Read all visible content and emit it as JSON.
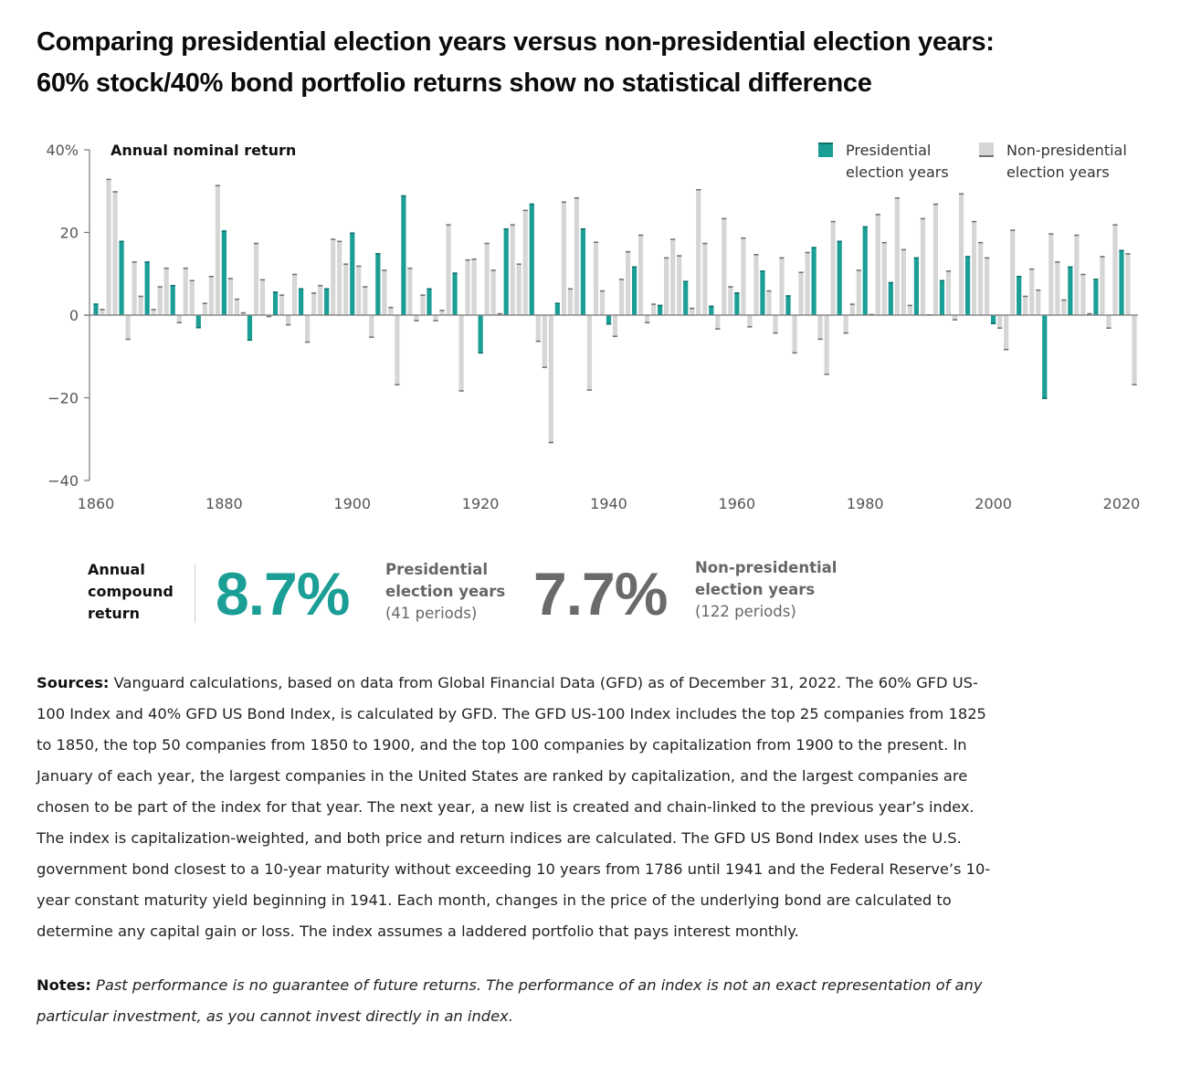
{
  "title": {
    "line1": "Comparing presidential election years versus non-presidential election years:",
    "line2": "60% stock/40% bond portfolio returns show no statistical difference"
  },
  "colors": {
    "presidential": "#1a9e96",
    "presidential_cap": "#0e6f69",
    "non_presidential": "#d6d6d6",
    "non_presidential_cap": "#707070",
    "axis": "#777777",
    "big_nonpres": "#6a6a6a"
  },
  "legend": {
    "presidential": {
      "line1": "Presidential",
      "line2": "election years"
    },
    "non_presidential": {
      "line1": "Non-presidential",
      "line2": "election years"
    }
  },
  "chart_data": {
    "type": "bar",
    "title": "Comparing presidential election years versus non-presidential election years: 60% stock/40% bond portfolio returns show no statistical difference",
    "ylabel": "Annual nominal return",
    "xlabel": "",
    "ylim": [
      -40,
      40
    ],
    "yticks": [
      40,
      20,
      0,
      -20,
      -40
    ],
    "ytick_labels": [
      "40%",
      "20",
      "0",
      "−20",
      "−40"
    ],
    "xlim": [
      1860,
      2022
    ],
    "xticks": [
      1860,
      1880,
      1900,
      1920,
      1940,
      1960,
      1980,
      2000,
      2020
    ],
    "grid": false,
    "legend_position": "top-right",
    "series": [
      {
        "name": "Presidential election years",
        "rule": "year % 4 == 0"
      },
      {
        "name": "Non-presidential election years",
        "rule": "year % 4 != 0"
      }
    ],
    "start_year": 1860,
    "values": [
      2.8,
      1.5,
      33,
      30,
      18,
      -6,
      13,
      4.7,
      13,
      1.5,
      7,
      11.5,
      7.3,
      -2,
      11.5,
      8.5,
      -3.2,
      3,
      9.5,
      31.5,
      20.5,
      9,
      4,
      0.7,
      -6.2,
      17.5,
      8.7,
      -0.5,
      5.7,
      5,
      -2.5,
      10,
      6.5,
      -6.7,
      5.5,
      7.3,
      6.5,
      18.5,
      18,
      12.5,
      20,
      12,
      7,
      -5.5,
      15,
      11,
      2,
      -17,
      29,
      11.5,
      -1.5,
      5,
      6.5,
      -1.5,
      1.3,
      22,
      10.3,
      -18.5,
      13.5,
      13.7,
      -9.3,
      17.5,
      11,
      0.5,
      21,
      22,
      12.5,
      25.5,
      27,
      -6.5,
      -12.8,
      -31,
      3,
      27.5,
      6.5,
      28.5,
      21,
      -18.3,
      17.8,
      6,
      -2.3,
      -5.3,
      8.8,
      15.5,
      11.8,
      19.5,
      -2,
      2.8,
      2.5,
      14,
      18.5,
      14.5,
      8.3,
      1.8,
      30.5,
      17.5,
      2.3,
      -3.5,
      23.5,
      7,
      5.5,
      18.8,
      -3,
      14.8,
      10.8,
      6,
      -4.5,
      14,
      4.8,
      -9.3,
      10.5,
      15.3,
      16.5,
      -6,
      -14.5,
      22.8,
      18,
      -4.5,
      2.8,
      11,
      21.5,
      0.3,
      24.5,
      17.7,
      8,
      28.5,
      16,
      2.5,
      14,
      23.5,
      0.2,
      27,
      8.5,
      10.8,
      -1.3,
      29.5,
      14.3,
      22.8,
      17.7,
      14,
      -2.2,
      -3.3,
      -8.5,
      20.7,
      9.5,
      4.7,
      11.3,
      6.2,
      -20.3,
      19.8,
      13,
      3.8,
      11.8,
      19.5,
      10,
      0.5,
      8.8,
      14.3,
      -3.3,
      22,
      15.8,
      15,
      -17
    ]
  },
  "stats": {
    "label_lines": [
      "Annual",
      "compound",
      "return"
    ],
    "presidential": {
      "value": "8.7%",
      "line1": "Presidential",
      "line2": "election years",
      "line3": "(41 periods)"
    },
    "non_presidential": {
      "value": "7.7%",
      "line1": "Non-presidential",
      "line2": "election years",
      "line3": "(122 periods)"
    }
  },
  "sources": {
    "label": "Sources:",
    "lines": [
      " Vanguard calculations, based on data from Global Financial Data (GFD) as of December 31, 2022. The 60% GFD US-",
      "100 Index and 40% GFD US Bond Index, is calculated by GFD. The GFD US-100 Index includes the top 25 companies from 1825",
      "to 1850, the top 50 companies from 1850 to 1900, and the top 100 companies by capitalization from 1900 to the present. In",
      "January of each year, the largest companies in the United States are ranked by capitalization, and the largest companies are",
      "chosen to be part of the index for that year. The next year, a new list is created and chain-linked to the previous year’s index.",
      "The index is capitalization-weighted, and both price and return indices are calculated. The GFD US Bond Index uses the U.S.",
      "government bond closest to a 10-year maturity without exceeding 10 years from 1786 until 1941 and the Federal Reserve’s 10-",
      "year constant maturity yield beginning in 1941. Each month, changes in the price of the underlying bond are calculated to",
      "determine any capital gain or loss. The index assumes a laddered portfolio that pays interest monthly."
    ]
  },
  "notes": {
    "label": "Notes:",
    "lines": [
      " Past performance is no guarantee of future returns. The performance of an index is not an exact representation of any",
      "particular investment, as you cannot invest directly in an index."
    ]
  }
}
